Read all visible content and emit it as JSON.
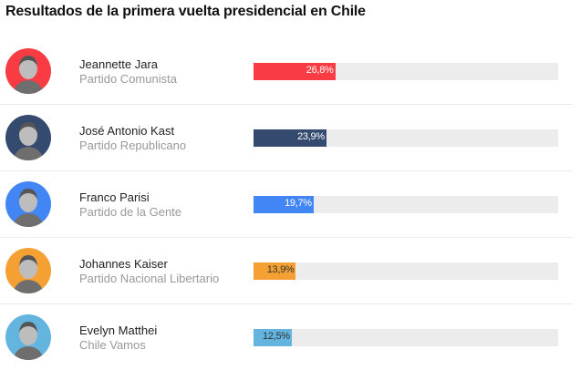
{
  "title": "Resultados de la primera vuelta presidencial en Chile",
  "chart_data": {
    "type": "bar",
    "orientation": "horizontal",
    "title": "Resultados de la primera vuelta presidencial en Chile",
    "xlim": [
      0,
      100
    ],
    "candidates": [
      {
        "name": "Jeannette Jara",
        "party": "Partido Comunista",
        "value": 26.8,
        "label": "26,8%",
        "color": "#f93c44",
        "text_color": "#ffffff"
      },
      {
        "name": "José Antonio Kast",
        "party": "Partido Republicano",
        "value": 23.9,
        "label": "23,9%",
        "color": "#344a6e",
        "text_color": "#ffffff"
      },
      {
        "name": "Franco Parisi",
        "party": "Partido de la Gente",
        "value": 19.7,
        "label": "19,7%",
        "color": "#4285f4",
        "text_color": "#ffffff"
      },
      {
        "name": "Johannes Kaiser",
        "party": "Partido Nacional Libertario",
        "value": 13.9,
        "label": "13,9%",
        "color": "#f5a033",
        "text_color": "#333333"
      },
      {
        "name": "Evelyn Matthei",
        "party": "Chile Vamos",
        "value": 12.5,
        "label": "12,5%",
        "color": "#63b5e0",
        "text_color": "#333333"
      }
    ]
  }
}
